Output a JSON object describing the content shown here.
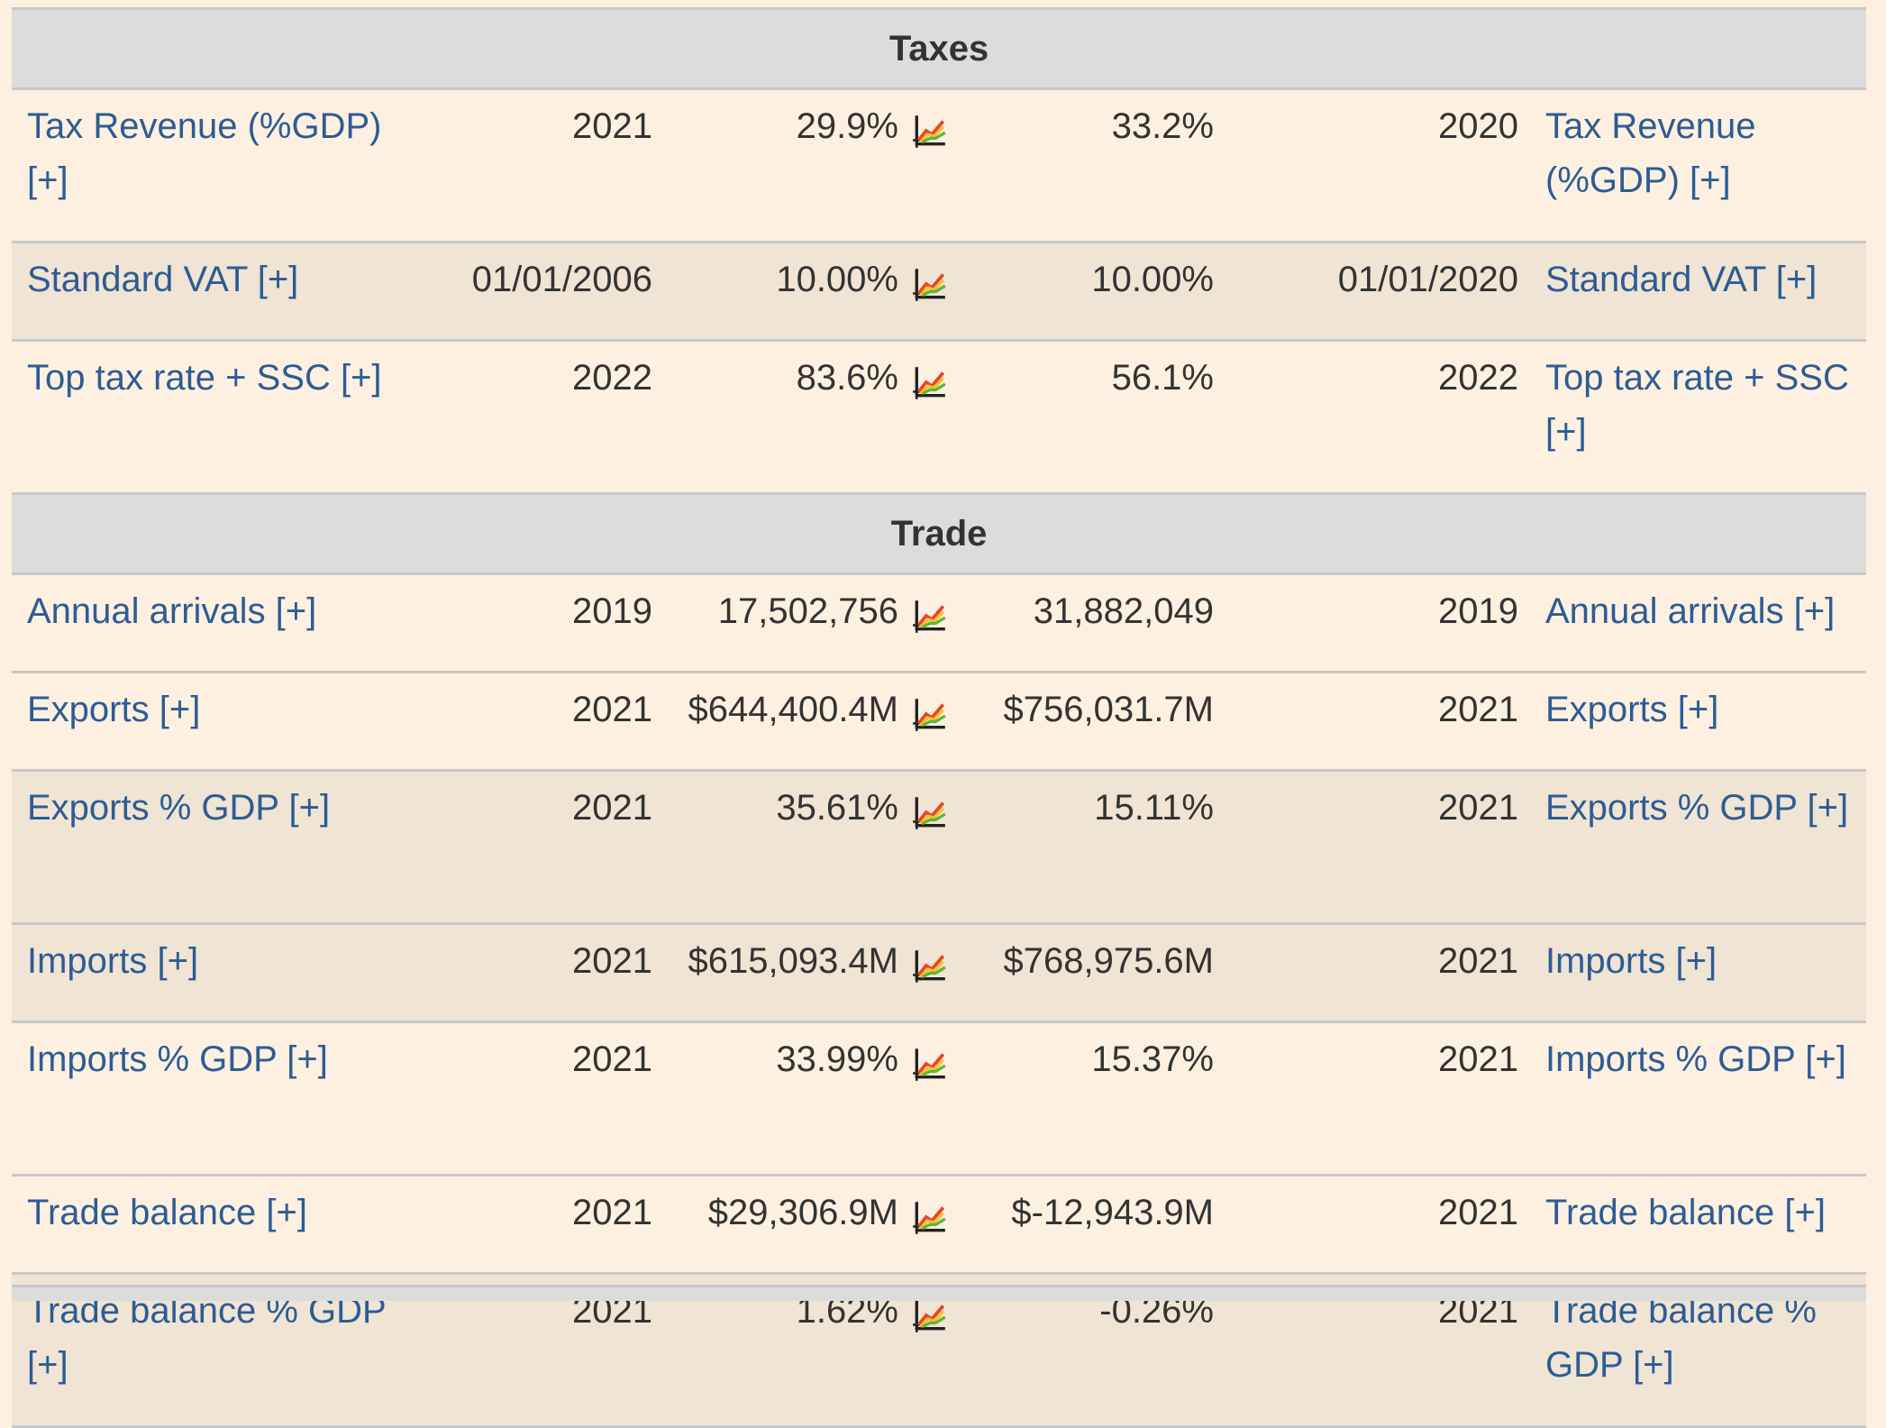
{
  "sections": [
    {
      "title": "Taxes",
      "rows": [
        {
          "label": "Tax Revenue (%GDP) [+]",
          "year_left": "2021",
          "value_left": "29.9%",
          "value_right": "33.2%",
          "year_right": "2020",
          "label_right": "Tax Revenue (%GDP) [+]"
        },
        {
          "label": "Standard VAT [+]",
          "year_left": "01/01/2006",
          "value_left": "10.00%",
          "value_right": "10.00%",
          "year_right": "01/01/2020",
          "label_right": "Standard VAT [+]"
        },
        {
          "label": "Top tax rate + SSC [+]",
          "year_left": "2022",
          "value_left": "83.6%",
          "value_right": "56.1%",
          "year_right": "2022",
          "label_right": "Top tax rate + SSC [+]"
        }
      ]
    },
    {
      "title": "Trade",
      "rows": [
        {
          "label": "Annual arrivals [+]",
          "year_left": "2019",
          "value_left": "17,502,756",
          "value_right": "31,882,049",
          "year_right": "2019",
          "label_right": "Annual arrivals [+]"
        },
        {
          "label": "Exports [+]",
          "year_left": "2021",
          "value_left": "$644,400.4M",
          "value_right": "$756,031.7M",
          "year_right": "2021",
          "label_right": "Exports [+]"
        },
        {
          "label": "Exports % GDP [+]",
          "year_left": "2021",
          "value_left": "35.61%",
          "value_right": "15.11%",
          "year_right": "2021",
          "label_right": "Exports % GDP [+]"
        },
        {
          "label": "Imports [+]",
          "year_left": "2021",
          "value_left": "$615,093.4M",
          "value_right": "$768,975.6M",
          "year_right": "2021",
          "label_right": "Imports [+]"
        },
        {
          "label": "Imports % GDP [+]",
          "year_left": "2021",
          "value_left": "33.99%",
          "value_right": "15.37%",
          "year_right": "2021",
          "label_right": "Imports % GDP [+]"
        },
        {
          "label": "Trade balance [+]",
          "year_left": "2021",
          "value_left": "$29,306.9M",
          "value_right": "$-12,943.9M",
          "year_right": "2021",
          "label_right": "Trade balance [+]"
        },
        {
          "label": "Trade balance % GDP [+]",
          "year_left": "2021",
          "value_left": "1.62%",
          "value_right": "-0.26%",
          "year_right": "2021",
          "label_right": "Trade balance % GDP [+]"
        }
      ]
    }
  ],
  "icons": {
    "compare_chart": "line-chart-icon"
  },
  "colors": {
    "link": "#2d5c94",
    "section_bg": "#dcdcdc",
    "row_light": "#fdf0e0",
    "row_dark": "#f0e4d4"
  }
}
